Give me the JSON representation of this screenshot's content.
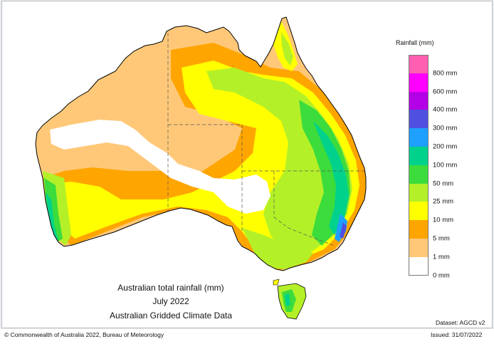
{
  "map": {
    "title_line1": "Australian total rainfall (mm)",
    "title_line2": "July 2022",
    "title_line3": "Australian Gridded Climate Data",
    "dataset": "Dataset: AGCD v2",
    "copyright": "© Commonwealth of Australia 2022, Bureau of Meteorology",
    "issued": "Issued: 31/07/2022"
  },
  "legend": {
    "title": "Rainfall (mm)",
    "classes": [
      {
        "color": "#ff5fb0",
        "label": ""
      },
      {
        "color": "#ff00ff",
        "label": "800 mm"
      },
      {
        "color": "#b400e6",
        "label": "600 mm"
      },
      {
        "color": "#5050e0",
        "label": "400 mm"
      },
      {
        "color": "#1ea0ff",
        "label": "300 mm"
      },
      {
        "color": "#00d28c",
        "label": "200 mm"
      },
      {
        "color": "#3cdc3c",
        "label": "100 mm"
      },
      {
        "color": "#b4f028",
        "label": "50 mm"
      },
      {
        "color": "#ffff00",
        "label": "25 mm"
      },
      {
        "color": "#ffa500",
        "label": "10 mm"
      },
      {
        "color": "#ffc878",
        "label": "5 mm"
      },
      {
        "color": "#ffffff",
        "label": "1 mm"
      },
      {
        "color": "",
        "label": "0 mm"
      }
    ]
  }
}
